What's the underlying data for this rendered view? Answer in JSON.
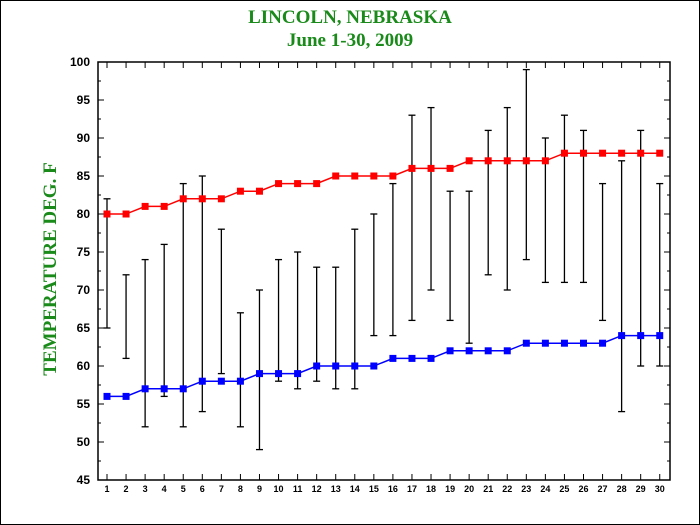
{
  "colors": {
    "title": "#1a8a1a",
    "high_series": "#ff0000",
    "low_series": "#0000ff",
    "range_bars": "#000000"
  },
  "chart_data": {
    "type": "line",
    "title": "LINCOLN, NEBRASKA",
    "subtitle": "June 1-30, 2009",
    "xlabel": "",
    "ylabel": "TEMPERATURE DEG. F",
    "ylim": [
      45,
      100
    ],
    "yticks": [
      45,
      50,
      55,
      60,
      65,
      70,
      75,
      80,
      85,
      90,
      95,
      100
    ],
    "x": [
      1,
      2,
      3,
      4,
      5,
      6,
      7,
      8,
      9,
      10,
      11,
      12,
      13,
      14,
      15,
      16,
      17,
      18,
      19,
      20,
      21,
      22,
      23,
      24,
      25,
      26,
      27,
      28,
      29,
      30
    ],
    "grid": false,
    "legend": "none",
    "series": [
      {
        "values": [
          80,
          80,
          81,
          81,
          82,
          82,
          82,
          83,
          83,
          84,
          84,
          84,
          85,
          85,
          85,
          85,
          86,
          86,
          86,
          87,
          87,
          87,
          87,
          87,
          88,
          88,
          88,
          88,
          88,
          88
        ]
      },
      {
        "values": [
          56,
          56,
          57,
          57,
          57,
          58,
          58,
          58,
          59,
          59,
          59,
          60,
          60,
          60,
          60,
          61,
          61,
          61,
          62,
          62,
          62,
          62,
          63,
          63,
          63,
          63,
          63,
          64,
          64,
          64
        ]
      }
    ],
    "ranges": [
      [
        65,
        82
      ],
      [
        61,
        72
      ],
      [
        52,
        74
      ],
      [
        56,
        76
      ],
      [
        52,
        84
      ],
      [
        54,
        85
      ],
      [
        59,
        78
      ],
      [
        52,
        67
      ],
      [
        49,
        70
      ],
      [
        58,
        74
      ],
      [
        57,
        75
      ],
      [
        58,
        73
      ],
      [
        57,
        73
      ],
      [
        57,
        78
      ],
      [
        64,
        80
      ],
      [
        64,
        84
      ],
      [
        66,
        93
      ],
      [
        70,
        94
      ],
      [
        66,
        83
      ],
      [
        63,
        83
      ],
      [
        72,
        91
      ],
      [
        70,
        94
      ],
      [
        74,
        99
      ],
      [
        71,
        90
      ],
      [
        71,
        93
      ],
      [
        71,
        91
      ],
      [
        66,
        84
      ],
      [
        54,
        87
      ],
      [
        60,
        91
      ],
      [
        60,
        84
      ]
    ]
  }
}
